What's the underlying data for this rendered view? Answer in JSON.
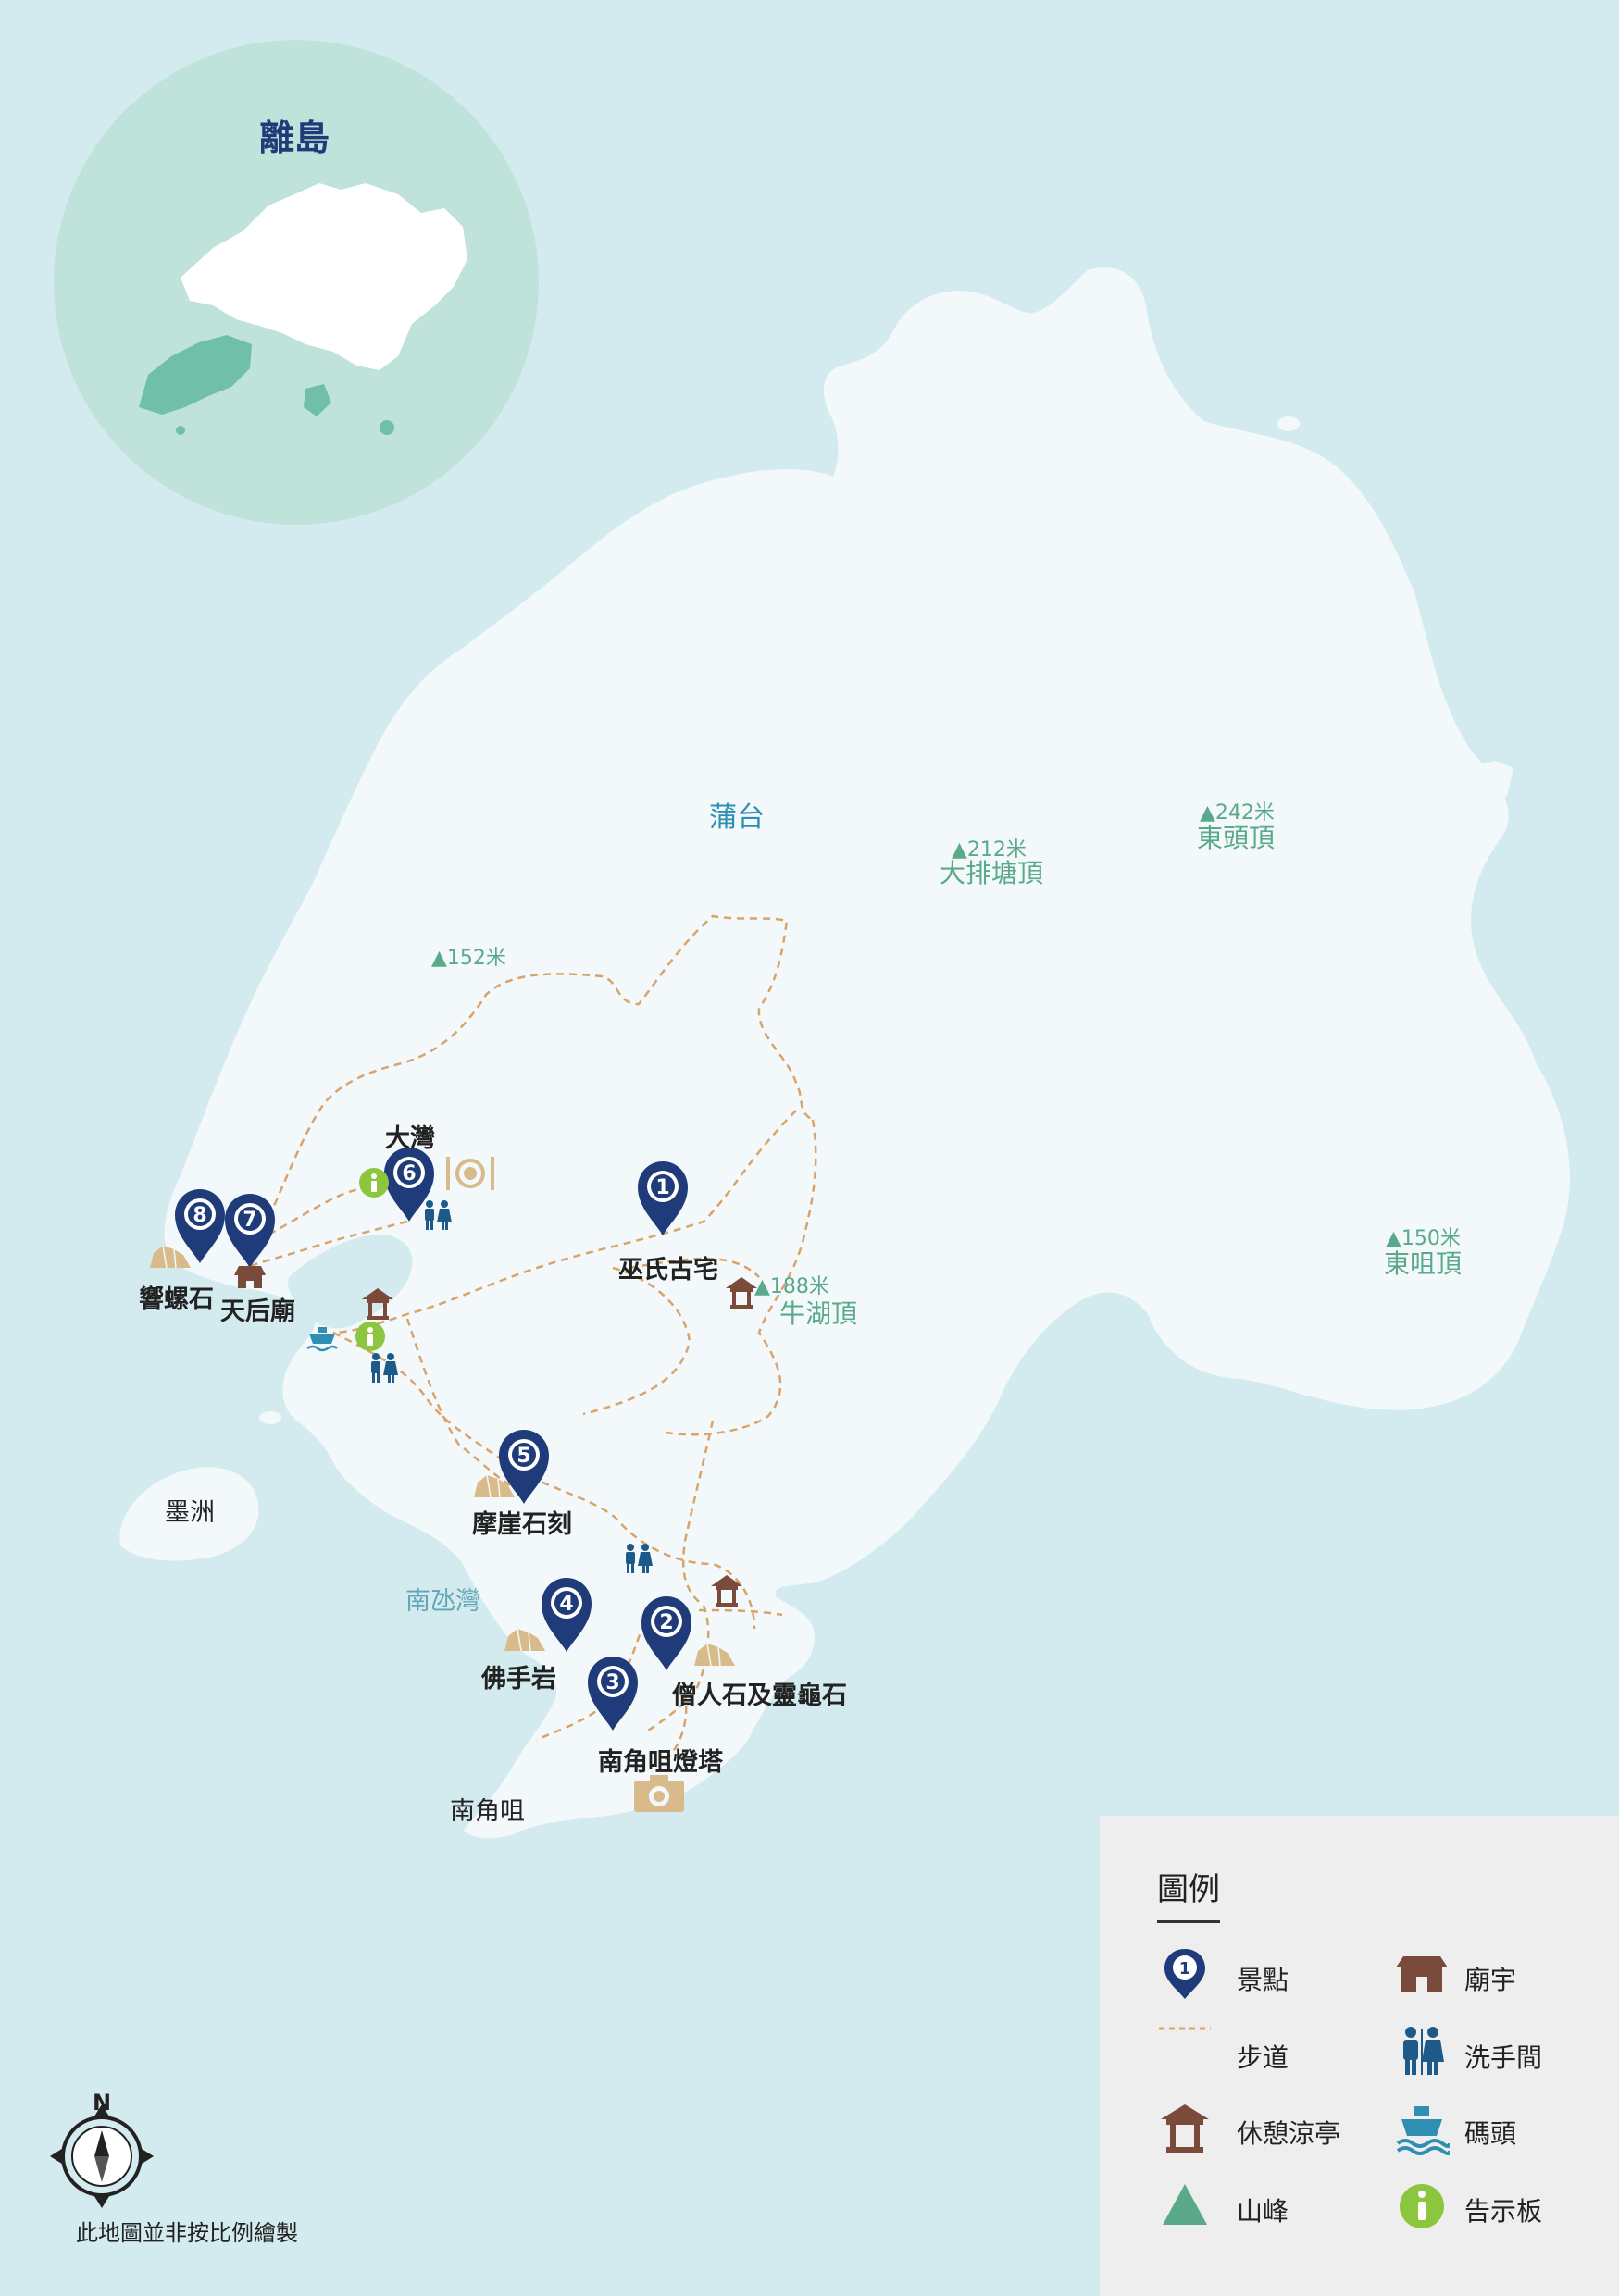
{
  "inset": {
    "title": "離島"
  },
  "area_label": "蒲台",
  "peaks": [
    {
      "height": "212米",
      "name": "大排塘頂"
    },
    {
      "height": "242米",
      "name": "東頭頂"
    },
    {
      "height": "152米",
      "name": ""
    },
    {
      "height": "188米",
      "name": "牛湖頂"
    },
    {
      "height": "150米",
      "name": "東咀頂"
    }
  ],
  "attractions": [
    {
      "number": "1",
      "label": "巫氏古宅"
    },
    {
      "number": "2",
      "label": "僧人石及靈龜石"
    },
    {
      "number": "3",
      "label": "南角咀燈塔"
    },
    {
      "number": "4",
      "label": "佛手岩"
    },
    {
      "number": "5",
      "label": "摩崖石刻"
    },
    {
      "number": "6",
      "label": "大灣"
    },
    {
      "number": "7",
      "label": "天后廟"
    },
    {
      "number": "8",
      "label": "響螺石"
    }
  ],
  "places": {
    "islet": "墨洲",
    "bay": "南氹灣",
    "cape": "南角咀"
  },
  "legend": {
    "title": "圖例",
    "items": {
      "attraction": "景點",
      "trail": "步道",
      "pavilion": "休憩涼亭",
      "peak": "山峰",
      "temple": "廟宇",
      "toilet": "洗手間",
      "pier": "碼頭",
      "info": "告示板"
    },
    "sample_number": "1"
  },
  "compass": {
    "north": "N"
  },
  "scale_note": "此地圖並非按比例繪製",
  "colors": {
    "sea": "#d3ebee",
    "land": "#f3f9fb",
    "inset_circle": "#bfe3da",
    "inset_highlight": "#6fc0a7",
    "pin": "#1f3b7a",
    "trail": "#d9a36a",
    "temple": "#7a4a3a",
    "toilet": "#1d5a8a",
    "peak": "#5aa98a",
    "info": "#8cc63f",
    "rock": "#d9bb8b"
  }
}
